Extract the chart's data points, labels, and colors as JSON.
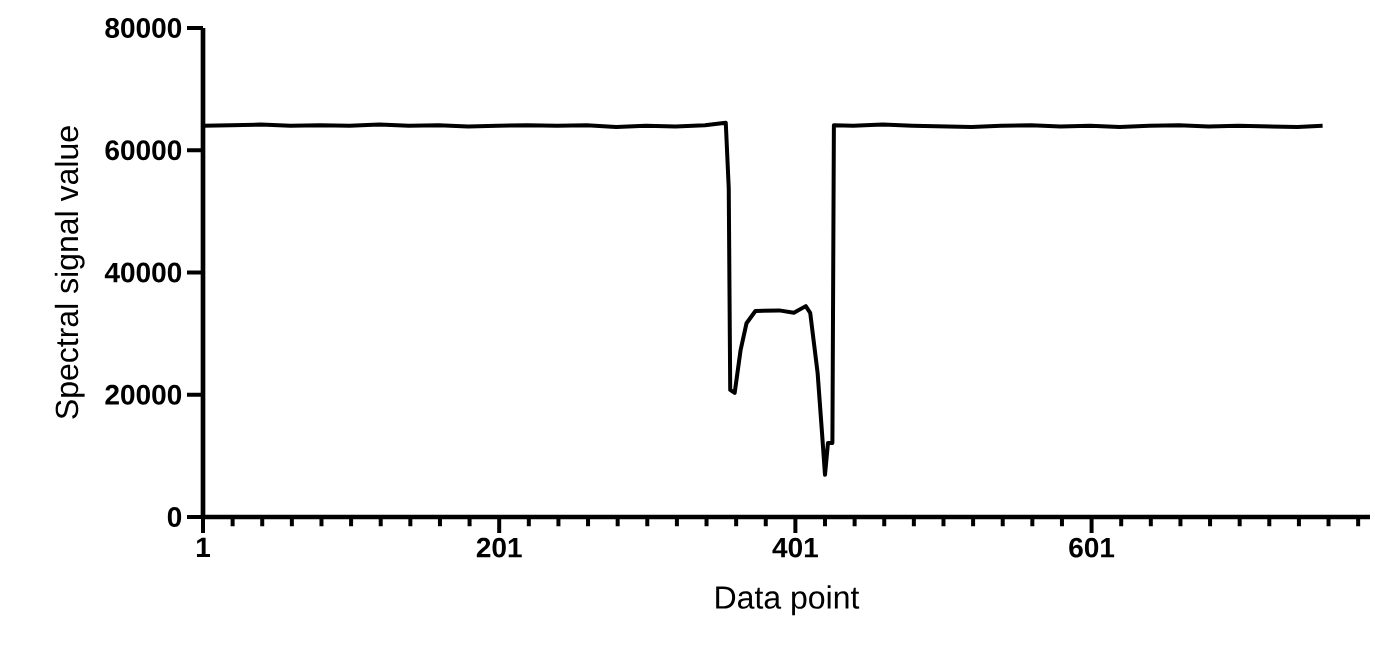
{
  "chart_data": {
    "type": "line",
    "xlabel": "Data point",
    "ylabel": "Spectral signal value",
    "x": [
      1,
      20,
      40,
      60,
      80,
      100,
      120,
      140,
      160,
      180,
      200,
      220,
      240,
      260,
      280,
      300,
      320,
      340,
      354,
      356,
      357,
      360,
      364,
      368,
      374,
      390,
      400,
      408,
      411,
      416,
      419,
      421,
      423,
      426,
      427,
      440,
      460,
      480,
      500,
      520,
      540,
      560,
      580,
      600,
      620,
      640,
      660,
      680,
      700,
      720,
      740,
      757
    ],
    "series": [
      {
        "color": "#000000",
        "values": [
          64000,
          64100,
          64200,
          64000,
          64100,
          64000,
          64200,
          64000,
          64100,
          63900,
          64000,
          64100,
          64000,
          64100,
          63800,
          64000,
          63900,
          64100,
          64500,
          53800,
          20800,
          20300,
          27300,
          31700,
          33700,
          33800,
          33400,
          34500,
          33400,
          23600,
          13700,
          6900,
          12100,
          12100,
          64100,
          64000,
          64200,
          64000,
          63900,
          63800,
          64000,
          64100,
          63900,
          64000,
          63800,
          64000,
          64100,
          63900,
          64000,
          63900,
          63800,
          64000
        ]
      }
    ],
    "xlim": [
      1,
      789
    ],
    "ylim": [
      0,
      80000
    ],
    "xticks": [
      1,
      {
        "value": 21,
        "label": null
      },
      {
        "value": 41,
        "label": null
      },
      {
        "value": 61,
        "label": null
      },
      {
        "value": 81,
        "label": null
      },
      {
        "value": 101,
        "label": null
      },
      {
        "value": 121,
        "label": null
      },
      {
        "value": 141,
        "label": null
      },
      {
        "value": 161,
        "label": null
      },
      {
        "value": 181,
        "label": null
      },
      201,
      {
        "value": 221,
        "label": null
      },
      {
        "value": 241,
        "label": null
      },
      {
        "value": 261,
        "label": null
      },
      {
        "value": 281,
        "label": null
      },
      {
        "value": 301,
        "label": null
      },
      {
        "value": 321,
        "label": null
      },
      {
        "value": 341,
        "label": null
      },
      {
        "value": 361,
        "label": null
      },
      {
        "value": 381,
        "label": null
      },
      401,
      {
        "value": 421,
        "label": null
      },
      {
        "value": 441,
        "label": null
      },
      {
        "value": 461,
        "label": null
      },
      {
        "value": 481,
        "label": null
      },
      {
        "value": 501,
        "label": null
      },
      {
        "value": 521,
        "label": null
      },
      {
        "value": 541,
        "label": null
      },
      {
        "value": 561,
        "label": null
      },
      {
        "value": 581,
        "label": null
      },
      601,
      {
        "value": 621,
        "label": null
      },
      {
        "value": 641,
        "label": null
      },
      {
        "value": 661,
        "label": null
      },
      {
        "value": 681,
        "label": null
      },
      {
        "value": 701,
        "label": null
      },
      {
        "value": 721,
        "label": null
      },
      {
        "value": 741,
        "label": null
      },
      {
        "value": 761,
        "label": null
      },
      {
        "value": 781,
        "label": null
      }
    ],
    "yticks": [
      0,
      20000,
      40000,
      60000,
      80000
    ],
    "grid": false,
    "marker": "none",
    "line_style": "solid"
  }
}
